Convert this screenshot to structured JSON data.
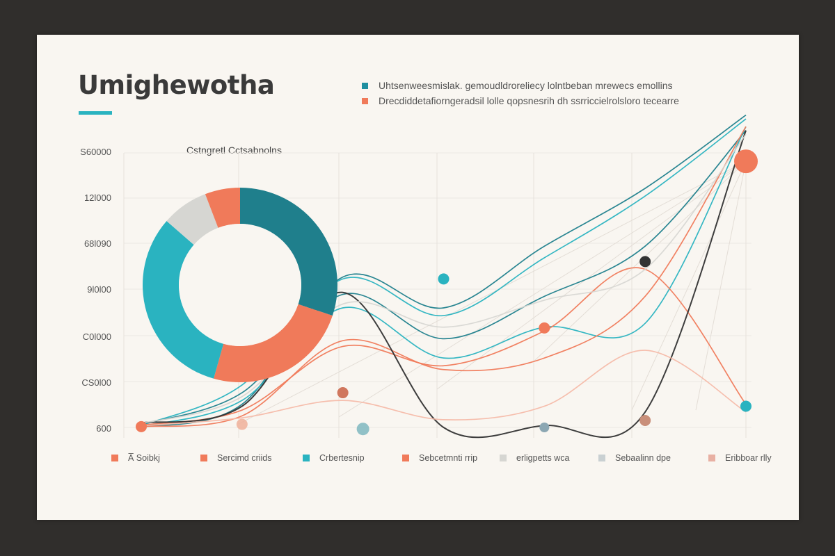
{
  "title": "Umighewotha",
  "header_legend": [
    {
      "label": "Uhtsenweesmislak. gemoudldroreliecy lolntbeban mrewecs emollins",
      "color": "#1f8fa0"
    },
    {
      "label": "Drecdiddetafiorngeradsil lolle qopsnesrih dh ssrriccielrolsloro tecearre",
      "color": "#f07a5a"
    }
  ],
  "colors": {
    "teal_dark": "#1f7f8c",
    "teal_light": "#2ab3c0",
    "orange": "#f07a5a",
    "gray": "#d6d6d2",
    "charcoal": "#333333",
    "card_bg": "#f9f6f1"
  },
  "chart_data": [
    {
      "type": "pie",
      "title": "Cstngretl Cctsabnolns",
      "slices": [
        {
          "value": 31,
          "color": "#1f7f8c"
        },
        {
          "value": 25,
          "color": "#f07a5a"
        },
        {
          "value": 33,
          "color": "#2ab3c0"
        },
        {
          "value": 8,
          "color": "#d6d6d2"
        },
        {
          "value": 6,
          "color": "#f07a5a"
        }
      ],
      "donut": true
    },
    {
      "type": "line",
      "ytick_labels": [
        "S60000",
        "12l000",
        "68l090",
        "9l0l00",
        "C0l000",
        "CS0l00",
        "600"
      ],
      "grid": true,
      "x": [
        0,
        1,
        2,
        3,
        4,
        5,
        6
      ],
      "series": [
        {
          "color": "#1f7f8c",
          "values": [
            1,
            60,
            390,
            310,
            470,
            620,
            810
          ]
        },
        {
          "color": "#2ab3c0",
          "values": [
            5,
            110,
            385,
            290,
            440,
            600,
            800
          ]
        },
        {
          "color": "#1f7f8c",
          "values": [
            8,
            90,
            345,
            230,
            340,
            470,
            770
          ]
        },
        {
          "color": "#2ab3c0",
          "values": [
            3,
            70,
            310,
            180,
            260,
            270,
            780
          ]
        },
        {
          "color": "#f07a5a",
          "values": [
            2,
            30,
            225,
            150,
            180,
            340,
            780
          ]
        },
        {
          "color": "#f07a5a",
          "values": [
            6,
            45,
            210,
            160,
            250,
            410,
            60
          ]
        },
        {
          "color": "#333333",
          "values": [
            12,
            55,
            350,
            0,
            5,
            40,
            770
          ]
        },
        {
          "color": "#f5b8a5",
          "values": [
            4,
            25,
            70,
            20,
            55,
            200,
            40
          ]
        },
        {
          "color": "#d6d6d2",
          "values": [
            10,
            80,
            320,
            260,
            330,
            410,
            760
          ]
        }
      ],
      "markers": [
        {
          "x": 0,
          "y": 2,
          "color": "#f07a5a"
        },
        {
          "x": 1,
          "y": 8,
          "color": "#f0b09a"
        },
        {
          "x": 2,
          "y": 90,
          "color": "#d0775e"
        },
        {
          "x": 2.2,
          "y": -4,
          "color": "#7fb7c0"
        },
        {
          "x": 3,
          "y": 385,
          "color": "#2ab3c0"
        },
        {
          "x": 4,
          "y": 258,
          "color": "#f07a5a"
        },
        {
          "x": 4,
          "y": 0,
          "color": "#8ca7b3"
        },
        {
          "x": 5,
          "y": 430,
          "color": "#333333"
        },
        {
          "x": 5,
          "y": 18,
          "color": "#c98f7a"
        },
        {
          "x": 6,
          "y": 690,
          "color": "#f07a5a"
        },
        {
          "x": 6,
          "y": 55,
          "color": "#2ab3c0"
        }
      ]
    }
  ],
  "legend": [
    {
      "label": "A̅ Soibkj",
      "color": "#f07a5a"
    },
    {
      "label": "Sercimd criids",
      "color": "#f07a5a"
    },
    {
      "label": "Crbertesnip",
      "color": "#2ab3c0"
    },
    {
      "label": "Sebcetmnti rrip",
      "color": "#f07a5a"
    },
    {
      "label": "erligpetts wca",
      "color": "#d6d6d2"
    },
    {
      "label": "Sebaalinn dpe",
      "color": "#c9d0d2"
    },
    {
      "label": "Eribboar rlly",
      "color": "#e8b0a3"
    }
  ]
}
